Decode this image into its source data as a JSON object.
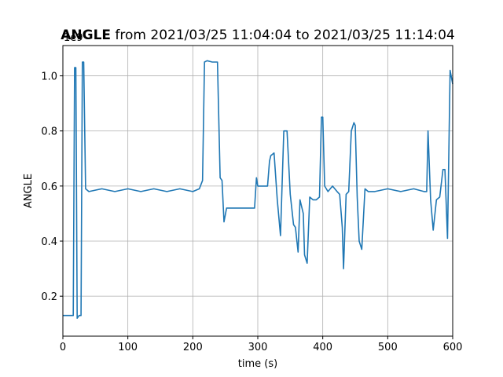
{
  "chart_data": {
    "type": "line",
    "title_bold": "ANGLE",
    "title_rest": " from 2021/03/25 11:04:04 to 2021/03/25 11:14:04",
    "xlabel": "time (s)",
    "ylabel": "ANGLE",
    "offset_label": "1e9",
    "xlim": [
      0,
      600
    ],
    "ylim": [
      0.055,
      1.11
    ],
    "xticks": [
      0,
      100,
      200,
      300,
      400,
      500,
      600
    ],
    "xtick_labels": [
      "0",
      "100",
      "200",
      "300",
      "400",
      "500",
      "600"
    ],
    "yticks": [
      0.2,
      0.4,
      0.6,
      0.8,
      1.0
    ],
    "ytick_labels": [
      "0.2",
      "0.4",
      "0.6",
      "0.8",
      "1.0"
    ],
    "grid": true,
    "color": "#1f77b4",
    "series": [
      {
        "x": [
          0,
          5,
          10,
          16,
          18,
          20,
          22,
          25,
          28,
          30,
          32,
          35,
          40,
          60,
          80,
          100,
          120,
          140,
          160,
          180,
          200,
          210,
          215,
          218,
          222,
          230,
          238,
          242,
          245,
          248,
          252,
          260,
          270,
          280,
          290,
          295,
          298,
          300,
          305,
          310,
          315,
          318,
          320,
          325,
          330,
          335,
          340,
          345,
          350,
          355,
          358,
          362,
          365,
          370,
          372,
          376,
          380,
          385,
          390,
          395,
          398,
          400,
          403,
          408,
          415,
          422,
          426,
          430,
          432,
          436,
          440,
          444,
          448,
          450,
          453,
          456,
          460,
          465,
          470,
          480,
          500,
          520,
          540,
          556,
          560,
          562,
          566,
          570,
          575,
          580,
          585,
          588,
          592,
          596,
          600
        ],
        "y": [
          0.13,
          0.13,
          0.13,
          0.13,
          1.03,
          1.03,
          0.12,
          0.13,
          0.13,
          1.05,
          1.05,
          0.59,
          0.58,
          0.59,
          0.58,
          0.59,
          0.58,
          0.59,
          0.58,
          0.59,
          0.58,
          0.59,
          0.62,
          1.05,
          1.055,
          1.05,
          1.05,
          0.63,
          0.62,
          0.47,
          0.52,
          0.52,
          0.52,
          0.52,
          0.52,
          0.52,
          0.63,
          0.6,
          0.6,
          0.6,
          0.6,
          0.69,
          0.71,
          0.72,
          0.55,
          0.42,
          0.8,
          0.8,
          0.57,
          0.46,
          0.45,
          0.36,
          0.55,
          0.5,
          0.35,
          0.32,
          0.56,
          0.55,
          0.55,
          0.56,
          0.85,
          0.85,
          0.6,
          0.58,
          0.6,
          0.58,
          0.57,
          0.45,
          0.3,
          0.57,
          0.58,
          0.8,
          0.83,
          0.82,
          0.56,
          0.4,
          0.37,
          0.59,
          0.58,
          0.58,
          0.59,
          0.58,
          0.59,
          0.58,
          0.58,
          0.8,
          0.55,
          0.44,
          0.55,
          0.56,
          0.66,
          0.66,
          0.41,
          1.02,
          0.97
        ]
      }
    ]
  }
}
